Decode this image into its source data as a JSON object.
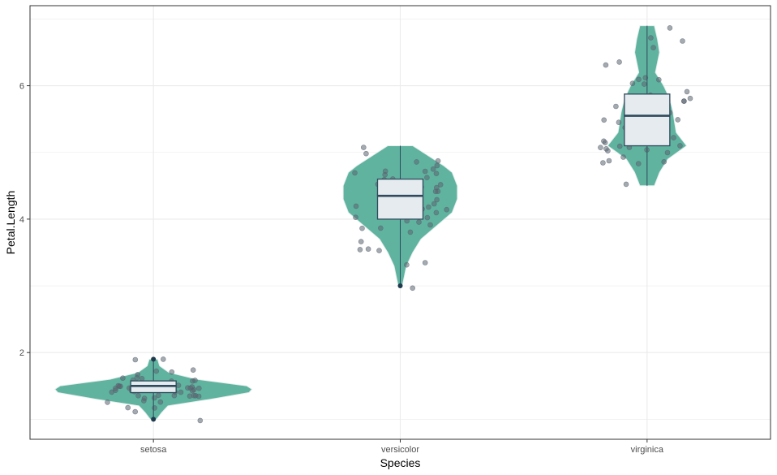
{
  "colors": {
    "violin_fill": "#5fb39f",
    "violin_stroke": "#e8efee",
    "box_fill": "#e6ebef",
    "box_stroke": "#2f4a5c",
    "point": "#5a6470",
    "outlier": "#1e3a4c",
    "grid": "#ebebeb",
    "panel_border": "#333333"
  },
  "chart_data": {
    "type": "violin",
    "title": "",
    "xlabel": "Species",
    "ylabel": "Petal.Length",
    "categories": [
      "setosa",
      "versicolor",
      "virginica"
    ],
    "ylim": [
      0.7,
      7.2
    ],
    "y_ticks": [
      2,
      4,
      6
    ],
    "y_tick_labels": [
      "2",
      "4",
      "6"
    ],
    "grid": true,
    "legend": "none",
    "box_stats": [
      {
        "category": "setosa",
        "min": 1.0,
        "q1": 1.4,
        "median": 1.5,
        "q3": 1.575,
        "max": 1.9,
        "outliers": [
          1.0,
          1.9
        ]
      },
      {
        "category": "versicolor",
        "min": 3.0,
        "q1": 4.0,
        "median": 4.35,
        "q3": 4.6,
        "max": 5.1,
        "outliers": [
          3.0
        ]
      },
      {
        "category": "virginica",
        "min": 4.5,
        "q1": 5.1,
        "median": 5.55,
        "q3": 5.875,
        "max": 6.9,
        "outliers": []
      }
    ],
    "violins": [
      {
        "category": "setosa",
        "profile": [
          [
            1.0,
            0.03
          ],
          [
            1.1,
            0.08
          ],
          [
            1.2,
            0.14
          ],
          [
            1.3,
            0.55
          ],
          [
            1.4,
            0.92
          ],
          [
            1.45,
            0.95
          ],
          [
            1.5,
            0.9
          ],
          [
            1.6,
            0.42
          ],
          [
            1.7,
            0.15
          ],
          [
            1.8,
            0.06
          ],
          [
            1.9,
            0.04
          ]
        ]
      },
      {
        "category": "versicolor",
        "profile": [
          [
            3.0,
            0.02
          ],
          [
            3.3,
            0.06
          ],
          [
            3.5,
            0.12
          ],
          [
            3.7,
            0.2
          ],
          [
            3.9,
            0.35
          ],
          [
            4.1,
            0.5
          ],
          [
            4.3,
            0.55
          ],
          [
            4.5,
            0.55
          ],
          [
            4.7,
            0.5
          ],
          [
            4.8,
            0.42
          ],
          [
            4.9,
            0.32
          ],
          [
            5.0,
            0.22
          ],
          [
            5.1,
            0.12
          ]
        ]
      },
      {
        "category": "virginica",
        "profile": [
          [
            4.5,
            0.07
          ],
          [
            4.7,
            0.12
          ],
          [
            4.9,
            0.2
          ],
          [
            5.1,
            0.38
          ],
          [
            5.3,
            0.28
          ],
          [
            5.6,
            0.25
          ],
          [
            5.8,
            0.22
          ],
          [
            6.0,
            0.16
          ],
          [
            6.2,
            0.08
          ],
          [
            6.5,
            0.12
          ],
          [
            6.7,
            0.1
          ],
          [
            6.9,
            0.07
          ]
        ]
      }
    ],
    "points": [
      {
        "category": "setosa",
        "values": [
          1.4,
          1.4,
          1.3,
          1.5,
          1.4,
          1.7,
          1.4,
          1.5,
          1.4,
          1.5,
          1.5,
          1.6,
          1.4,
          1.1,
          1.2,
          1.5,
          1.3,
          1.4,
          1.7,
          1.5,
          1.7,
          1.5,
          1.0,
          1.7,
          1.9,
          1.6,
          1.6,
          1.5,
          1.4,
          1.6,
          1.6,
          1.5,
          1.5,
          1.4,
          1.5,
          1.2,
          1.3,
          1.4,
          1.3,
          1.5,
          1.3,
          1.3,
          1.3,
          1.6,
          1.9,
          1.4,
          1.6,
          1.4,
          1.5,
          1.4
        ]
      },
      {
        "category": "versicolor",
        "values": [
          4.7,
          4.5,
          4.9,
          4.0,
          4.6,
          4.5,
          4.7,
          3.3,
          4.6,
          3.9,
          3.5,
          4.2,
          4.0,
          4.7,
          3.6,
          4.4,
          4.5,
          4.1,
          4.5,
          3.9,
          4.8,
          4.0,
          4.9,
          4.7,
          4.3,
          4.4,
          4.8,
          5.0,
          4.5,
          3.5,
          3.8,
          3.7,
          3.9,
          5.1,
          4.5,
          4.5,
          4.7,
          4.4,
          4.1,
          4.0,
          4.4,
          4.6,
          4.0,
          3.3,
          4.2,
          4.2,
          4.2,
          4.3,
          3.0,
          4.1
        ]
      },
      {
        "category": "virginica",
        "values": [
          6.0,
          5.1,
          5.9,
          5.6,
          5.8,
          6.6,
          4.5,
          6.3,
          5.8,
          6.1,
          5.1,
          5.3,
          5.5,
          5.0,
          5.1,
          5.3,
          5.5,
          6.7,
          6.9,
          5.0,
          5.7,
          4.9,
          6.7,
          4.9,
          5.7,
          6.0,
          4.8,
          4.9,
          5.6,
          5.8,
          6.1,
          6.4,
          5.6,
          5.1,
          5.6,
          6.1,
          5.6,
          5.5,
          4.8,
          5.4,
          5.6,
          5.1,
          5.1,
          5.9,
          5.7,
          5.2,
          5.0,
          5.2,
          5.4,
          5.1
        ]
      }
    ]
  }
}
